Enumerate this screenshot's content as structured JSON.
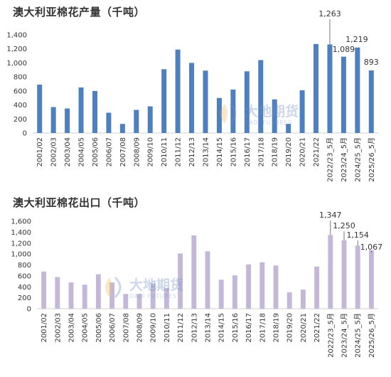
{
  "chart_data": [
    {
      "type": "bar",
      "title": "澳大利亚棉花产量（千吨）",
      "categories": [
        "2001/02",
        "2002/03",
        "2003/04",
        "2004/05",
        "2005/06",
        "2006/07",
        "2007/08",
        "2008/09",
        "2009/10",
        "2010/11",
        "2011/12",
        "2012/13",
        "2013/14",
        "2014/15",
        "2015/16",
        "2016/17",
        "2017/18",
        "2018/19",
        "2019/20",
        "2020/21",
        "2021/22",
        "2022/23_5月",
        "2023/24_5月",
        "2024/25_5月",
        "2025/26_5月"
      ],
      "series": [
        {
          "values": [
            690,
            370,
            350,
            650,
            600,
            290,
            130,
            330,
            380,
            910,
            1190,
            1000,
            890,
            500,
            620,
            880,
            1040,
            480,
            130,
            610,
            1270,
            1263,
            1089,
            1219,
            893
          ]
        }
      ],
      "data_labels": [
        "",
        "",
        "",
        "",
        "",
        "",
        "",
        "",
        "",
        "",
        "",
        "",
        "",
        "",
        "",
        "",
        "",
        "",
        "",
        "",
        "",
        "1,263",
        "1,089",
        "1,219",
        "893"
      ],
      "color": "#4e7fbf",
      "ylim": [
        0,
        1400
      ],
      "yticks": [
        "0",
        "200",
        "400",
        "600",
        "800",
        "1,000",
        "1,200",
        "1,400"
      ],
      "grid": false,
      "xlabel": "",
      "ylabel": ""
    },
    {
      "type": "bar",
      "title": "澳大利亚棉花出口（千吨）",
      "categories": [
        "2001/02",
        "2002/03",
        "2003/04",
        "2004/05",
        "2005/06",
        "2006/07",
        "2007/08",
        "2008/09",
        "2009/10",
        "2010/11",
        "2011/12",
        "2012/13",
        "2013/14",
        "2014/15",
        "2015/16",
        "2016/17",
        "2017/18",
        "2018/19",
        "2019/20",
        "2020/21",
        "2021/22",
        "2022/23_5月",
        "2023/24_5月",
        "2024/25_5月",
        "2025/26_5月"
      ],
      "series": [
        {
          "values": [
            680,
            580,
            480,
            440,
            630,
            480,
            270,
            270,
            460,
            380,
            1010,
            1340,
            1050,
            530,
            610,
            810,
            850,
            790,
            300,
            350,
            770,
            1347,
            1250,
            1154,
            1067
          ]
        }
      ],
      "data_labels": [
        "",
        "",
        "",
        "",
        "",
        "",
        "",
        "",
        "",
        "",
        "",
        "",
        "",
        "",
        "",
        "",
        "",
        "",
        "",
        "",
        "",
        "1,347",
        "1,250",
        "1,154",
        "1,067"
      ],
      "color": "#c4b8d9",
      "ylim": [
        0,
        1600
      ],
      "yticks": [
        "0",
        "200",
        "400",
        "600",
        "800",
        "1,000",
        "1,200",
        "1,400",
        "1,600"
      ],
      "grid": false,
      "xlabel": "",
      "ylabel": ""
    }
  ],
  "watermark": {
    "cn": "大地期货",
    "en": "DADI FUTURES"
  }
}
